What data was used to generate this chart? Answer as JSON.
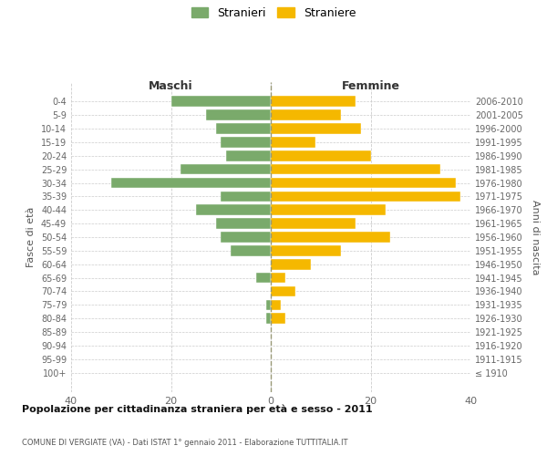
{
  "age_groups": [
    "100+",
    "95-99",
    "90-94",
    "85-89",
    "80-84",
    "75-79",
    "70-74",
    "65-69",
    "60-64",
    "55-59",
    "50-54",
    "45-49",
    "40-44",
    "35-39",
    "30-34",
    "25-29",
    "20-24",
    "15-19",
    "10-14",
    "5-9",
    "0-4"
  ],
  "birth_years": [
    "≤ 1910",
    "1911-1915",
    "1916-1920",
    "1921-1925",
    "1926-1930",
    "1931-1935",
    "1936-1940",
    "1941-1945",
    "1946-1950",
    "1951-1955",
    "1956-1960",
    "1961-1965",
    "1966-1970",
    "1971-1975",
    "1976-1980",
    "1981-1985",
    "1986-1990",
    "1991-1995",
    "1996-2000",
    "2001-2005",
    "2006-2010"
  ],
  "maschi": [
    0,
    0,
    0,
    0,
    1,
    1,
    0,
    3,
    0,
    8,
    10,
    11,
    15,
    10,
    32,
    18,
    9,
    10,
    11,
    13,
    20
  ],
  "femmine": [
    0,
    0,
    0,
    0,
    3,
    2,
    5,
    3,
    8,
    14,
    24,
    17,
    23,
    38,
    37,
    34,
    20,
    9,
    18,
    14,
    17
  ],
  "maschi_color": "#7aaa6b",
  "femmine_color": "#f5b800",
  "background_color": "#ffffff",
  "grid_color": "#cccccc",
  "title": "Popolazione per cittadinanza straniera per età e sesso - 2011",
  "subtitle": "COMUNE DI VERGIATE (VA) - Dati ISTAT 1° gennaio 2011 - Elaborazione TUTTITALIA.IT",
  "ylabel_left": "Fasce di età",
  "ylabel_right": "Anni di nascita",
  "xlabel_maschi": "Maschi",
  "xlabel_femmine": "Femmine",
  "legend_maschi": "Stranieri",
  "legend_femmine": "Straniere",
  "xlim": 40,
  "xticks": [
    -40,
    -20,
    0,
    20,
    40
  ],
  "xticklabels": [
    "40",
    "20",
    "0",
    "20",
    "40"
  ]
}
